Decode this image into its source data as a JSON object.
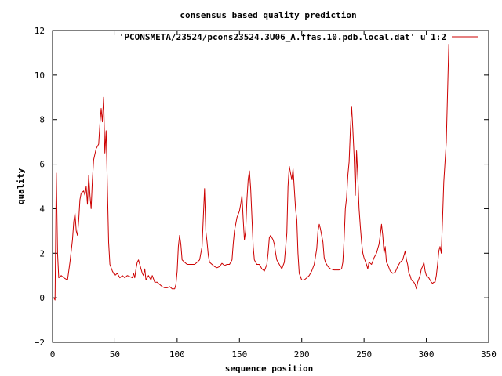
{
  "chart_data": {
    "type": "line",
    "title": "consensus based quality prediction",
    "xlabel": "sequence position",
    "ylabel": "quality",
    "xlim": [
      0,
      350
    ],
    "ylim": [
      -2,
      12
    ],
    "xticks": [
      0,
      50,
      100,
      150,
      200,
      250,
      300,
      350
    ],
    "yticks": [
      -2,
      0,
      2,
      4,
      6,
      8,
      10,
      12
    ],
    "grid": false,
    "legend_position": "top-right",
    "series": [
      {
        "name": "'PCONSMETA/23524/pcons23524.3U06_A.ffas.10.pdb.local.dat' u 1:2",
        "color": "#cc0000",
        "points": [
          [
            1,
            0.0
          ],
          [
            2,
            -0.1
          ],
          [
            3,
            5.6
          ],
          [
            4,
            2.0
          ],
          [
            5,
            0.9
          ],
          [
            7,
            1.0
          ],
          [
            9,
            0.9
          ],
          [
            12,
            0.8
          ],
          [
            14,
            1.6
          ],
          [
            16,
            2.6
          ],
          [
            17,
            3.4
          ],
          [
            18,
            3.8
          ],
          [
            19,
            3.0
          ],
          [
            20,
            2.8
          ],
          [
            21,
            3.5
          ],
          [
            22,
            4.4
          ],
          [
            23,
            4.7
          ],
          [
            25,
            4.8
          ],
          [
            26,
            4.6
          ],
          [
            27,
            5.0
          ],
          [
            28,
            4.2
          ],
          [
            29,
            5.5
          ],
          [
            30,
            4.6
          ],
          [
            31,
            4.0
          ],
          [
            32,
            5.3
          ],
          [
            33,
            6.2
          ],
          [
            35,
            6.7
          ],
          [
            37,
            6.9
          ],
          [
            38,
            7.8
          ],
          [
            39,
            8.5
          ],
          [
            40,
            7.9
          ],
          [
            41,
            9.0
          ],
          [
            42,
            6.5
          ],
          [
            43,
            7.5
          ],
          [
            44,
            5.0
          ],
          [
            45,
            2.5
          ],
          [
            46,
            1.5
          ],
          [
            48,
            1.2
          ],
          [
            50,
            1.0
          ],
          [
            52,
            1.1
          ],
          [
            54,
            0.9
          ],
          [
            56,
            1.0
          ],
          [
            58,
            0.9
          ],
          [
            60,
            1.0
          ],
          [
            62,
            0.95
          ],
          [
            64,
            0.9
          ],
          [
            65,
            1.1
          ],
          [
            66,
            0.9
          ],
          [
            67,
            1.3
          ],
          [
            68,
            1.6
          ],
          [
            69,
            1.7
          ],
          [
            70,
            1.5
          ],
          [
            71,
            1.3
          ],
          [
            72,
            1.1
          ],
          [
            73,
            1.0
          ],
          [
            74,
            1.3
          ],
          [
            75,
            0.8
          ],
          [
            77,
            1.0
          ],
          [
            79,
            0.8
          ],
          [
            80,
            1.0
          ],
          [
            82,
            0.7
          ],
          [
            84,
            0.7
          ],
          [
            86,
            0.6
          ],
          [
            88,
            0.5
          ],
          [
            90,
            0.45
          ],
          [
            92,
            0.45
          ],
          [
            94,
            0.5
          ],
          [
            96,
            0.4
          ],
          [
            98,
            0.4
          ],
          [
            99,
            0.6
          ],
          [
            100,
            1.2
          ],
          [
            101,
            2.3
          ],
          [
            102,
            2.8
          ],
          [
            103,
            2.4
          ],
          [
            104,
            1.7
          ],
          [
            106,
            1.6
          ],
          [
            108,
            1.5
          ],
          [
            110,
            1.5
          ],
          [
            114,
            1.5
          ],
          [
            116,
            1.6
          ],
          [
            118,
            1.7
          ],
          [
            120,
            2.3
          ],
          [
            121,
            3.6
          ],
          [
            122,
            4.9
          ],
          [
            123,
            3.0
          ],
          [
            124,
            2.5
          ],
          [
            125,
            1.9
          ],
          [
            126,
            1.6
          ],
          [
            128,
            1.5
          ],
          [
            130,
            1.4
          ],
          [
            132,
            1.35
          ],
          [
            134,
            1.4
          ],
          [
            136,
            1.55
          ],
          [
            138,
            1.45
          ],
          [
            140,
            1.5
          ],
          [
            142,
            1.5
          ],
          [
            144,
            1.7
          ],
          [
            145,
            2.4
          ],
          [
            146,
            3.0
          ],
          [
            148,
            3.6
          ],
          [
            150,
            3.9
          ],
          [
            151,
            4.2
          ],
          [
            152,
            4.6
          ],
          [
            153,
            3.5
          ],
          [
            154,
            2.6
          ],
          [
            155,
            3.0
          ],
          [
            156,
            4.4
          ],
          [
            157,
            5.3
          ],
          [
            158,
            5.7
          ],
          [
            159,
            4.9
          ],
          [
            160,
            3.6
          ],
          [
            161,
            2.3
          ],
          [
            162,
            1.7
          ],
          [
            164,
            1.5
          ],
          [
            166,
            1.5
          ],
          [
            168,
            1.3
          ],
          [
            170,
            1.2
          ],
          [
            172,
            1.5
          ],
          [
            173,
            2.0
          ],
          [
            174,
            2.7
          ],
          [
            175,
            2.8
          ],
          [
            177,
            2.6
          ],
          [
            178,
            2.4
          ],
          [
            179,
            2.0
          ],
          [
            180,
            1.7
          ],
          [
            182,
            1.5
          ],
          [
            184,
            1.3
          ],
          [
            186,
            1.6
          ],
          [
            188,
            2.9
          ],
          [
            189,
            5.0
          ],
          [
            190,
            5.9
          ],
          [
            191,
            5.6
          ],
          [
            192,
            5.3
          ],
          [
            193,
            5.8
          ],
          [
            194,
            4.9
          ],
          [
            195,
            4.0
          ],
          [
            196,
            3.5
          ],
          [
            197,
            2.0
          ],
          [
            198,
            1.1
          ],
          [
            200,
            0.8
          ],
          [
            202,
            0.8
          ],
          [
            204,
            0.9
          ],
          [
            206,
            1.0
          ],
          [
            208,
            1.2
          ],
          [
            210,
            1.5
          ],
          [
            212,
            2.2
          ],
          [
            213,
            3.0
          ],
          [
            214,
            3.3
          ],
          [
            215,
            3.1
          ],
          [
            216,
            2.8
          ],
          [
            217,
            2.5
          ],
          [
            218,
            1.8
          ],
          [
            219,
            1.6
          ],
          [
            221,
            1.4
          ],
          [
            223,
            1.3
          ],
          [
            226,
            1.25
          ],
          [
            230,
            1.25
          ],
          [
            232,
            1.3
          ],
          [
            233,
            1.6
          ],
          [
            234,
            2.6
          ],
          [
            235,
            4.0
          ],
          [
            236,
            4.5
          ],
          [
            237,
            5.5
          ],
          [
            238,
            6.1
          ],
          [
            239,
            7.5
          ],
          [
            240,
            8.6
          ],
          [
            241,
            7.6
          ],
          [
            242,
            6.4
          ],
          [
            243,
            4.6
          ],
          [
            244,
            6.6
          ],
          [
            245,
            5.4
          ],
          [
            246,
            4.0
          ],
          [
            247,
            3.2
          ],
          [
            248,
            2.5
          ],
          [
            249,
            2.0
          ],
          [
            250,
            1.8
          ],
          [
            252,
            1.5
          ],
          [
            253,
            1.3
          ],
          [
            254,
            1.6
          ],
          [
            256,
            1.5
          ],
          [
            258,
            1.8
          ],
          [
            260,
            2.0
          ],
          [
            262,
            2.4
          ],
          [
            263,
            2.8
          ],
          [
            264,
            3.3
          ],
          [
            265,
            2.8
          ],
          [
            266,
            2.0
          ],
          [
            267,
            2.3
          ],
          [
            268,
            1.6
          ],
          [
            269,
            1.5
          ],
          [
            271,
            1.2
          ],
          [
            273,
            1.1
          ],
          [
            275,
            1.15
          ],
          [
            277,
            1.4
          ],
          [
            279,
            1.6
          ],
          [
            281,
            1.7
          ],
          [
            282,
            1.9
          ],
          [
            283,
            2.1
          ],
          [
            284,
            1.7
          ],
          [
            285,
            1.5
          ],
          [
            286,
            1.1
          ],
          [
            287,
            1.0
          ],
          [
            288,
            0.8
          ],
          [
            290,
            0.7
          ],
          [
            291,
            0.6
          ],
          [
            292,
            0.4
          ],
          [
            293,
            0.7
          ],
          [
            295,
            1.0
          ],
          [
            296,
            1.3
          ],
          [
            297,
            1.4
          ],
          [
            298,
            1.6
          ],
          [
            299,
            1.2
          ],
          [
            300,
            1.0
          ],
          [
            302,
            0.9
          ],
          [
            303,
            0.8
          ],
          [
            304,
            0.7
          ],
          [
            305,
            0.65
          ],
          [
            306,
            0.7
          ],
          [
            307,
            0.7
          ],
          [
            308,
            1.0
          ],
          [
            309,
            1.5
          ],
          [
            310,
            2.1
          ],
          [
            311,
            2.3
          ],
          [
            312,
            2.0
          ],
          [
            313,
            3.5
          ],
          [
            314,
            5.2
          ],
          [
            315,
            6.1
          ],
          [
            316,
            7.0
          ],
          [
            317,
            9.2
          ],
          [
            318,
            11.4
          ]
        ]
      }
    ]
  }
}
